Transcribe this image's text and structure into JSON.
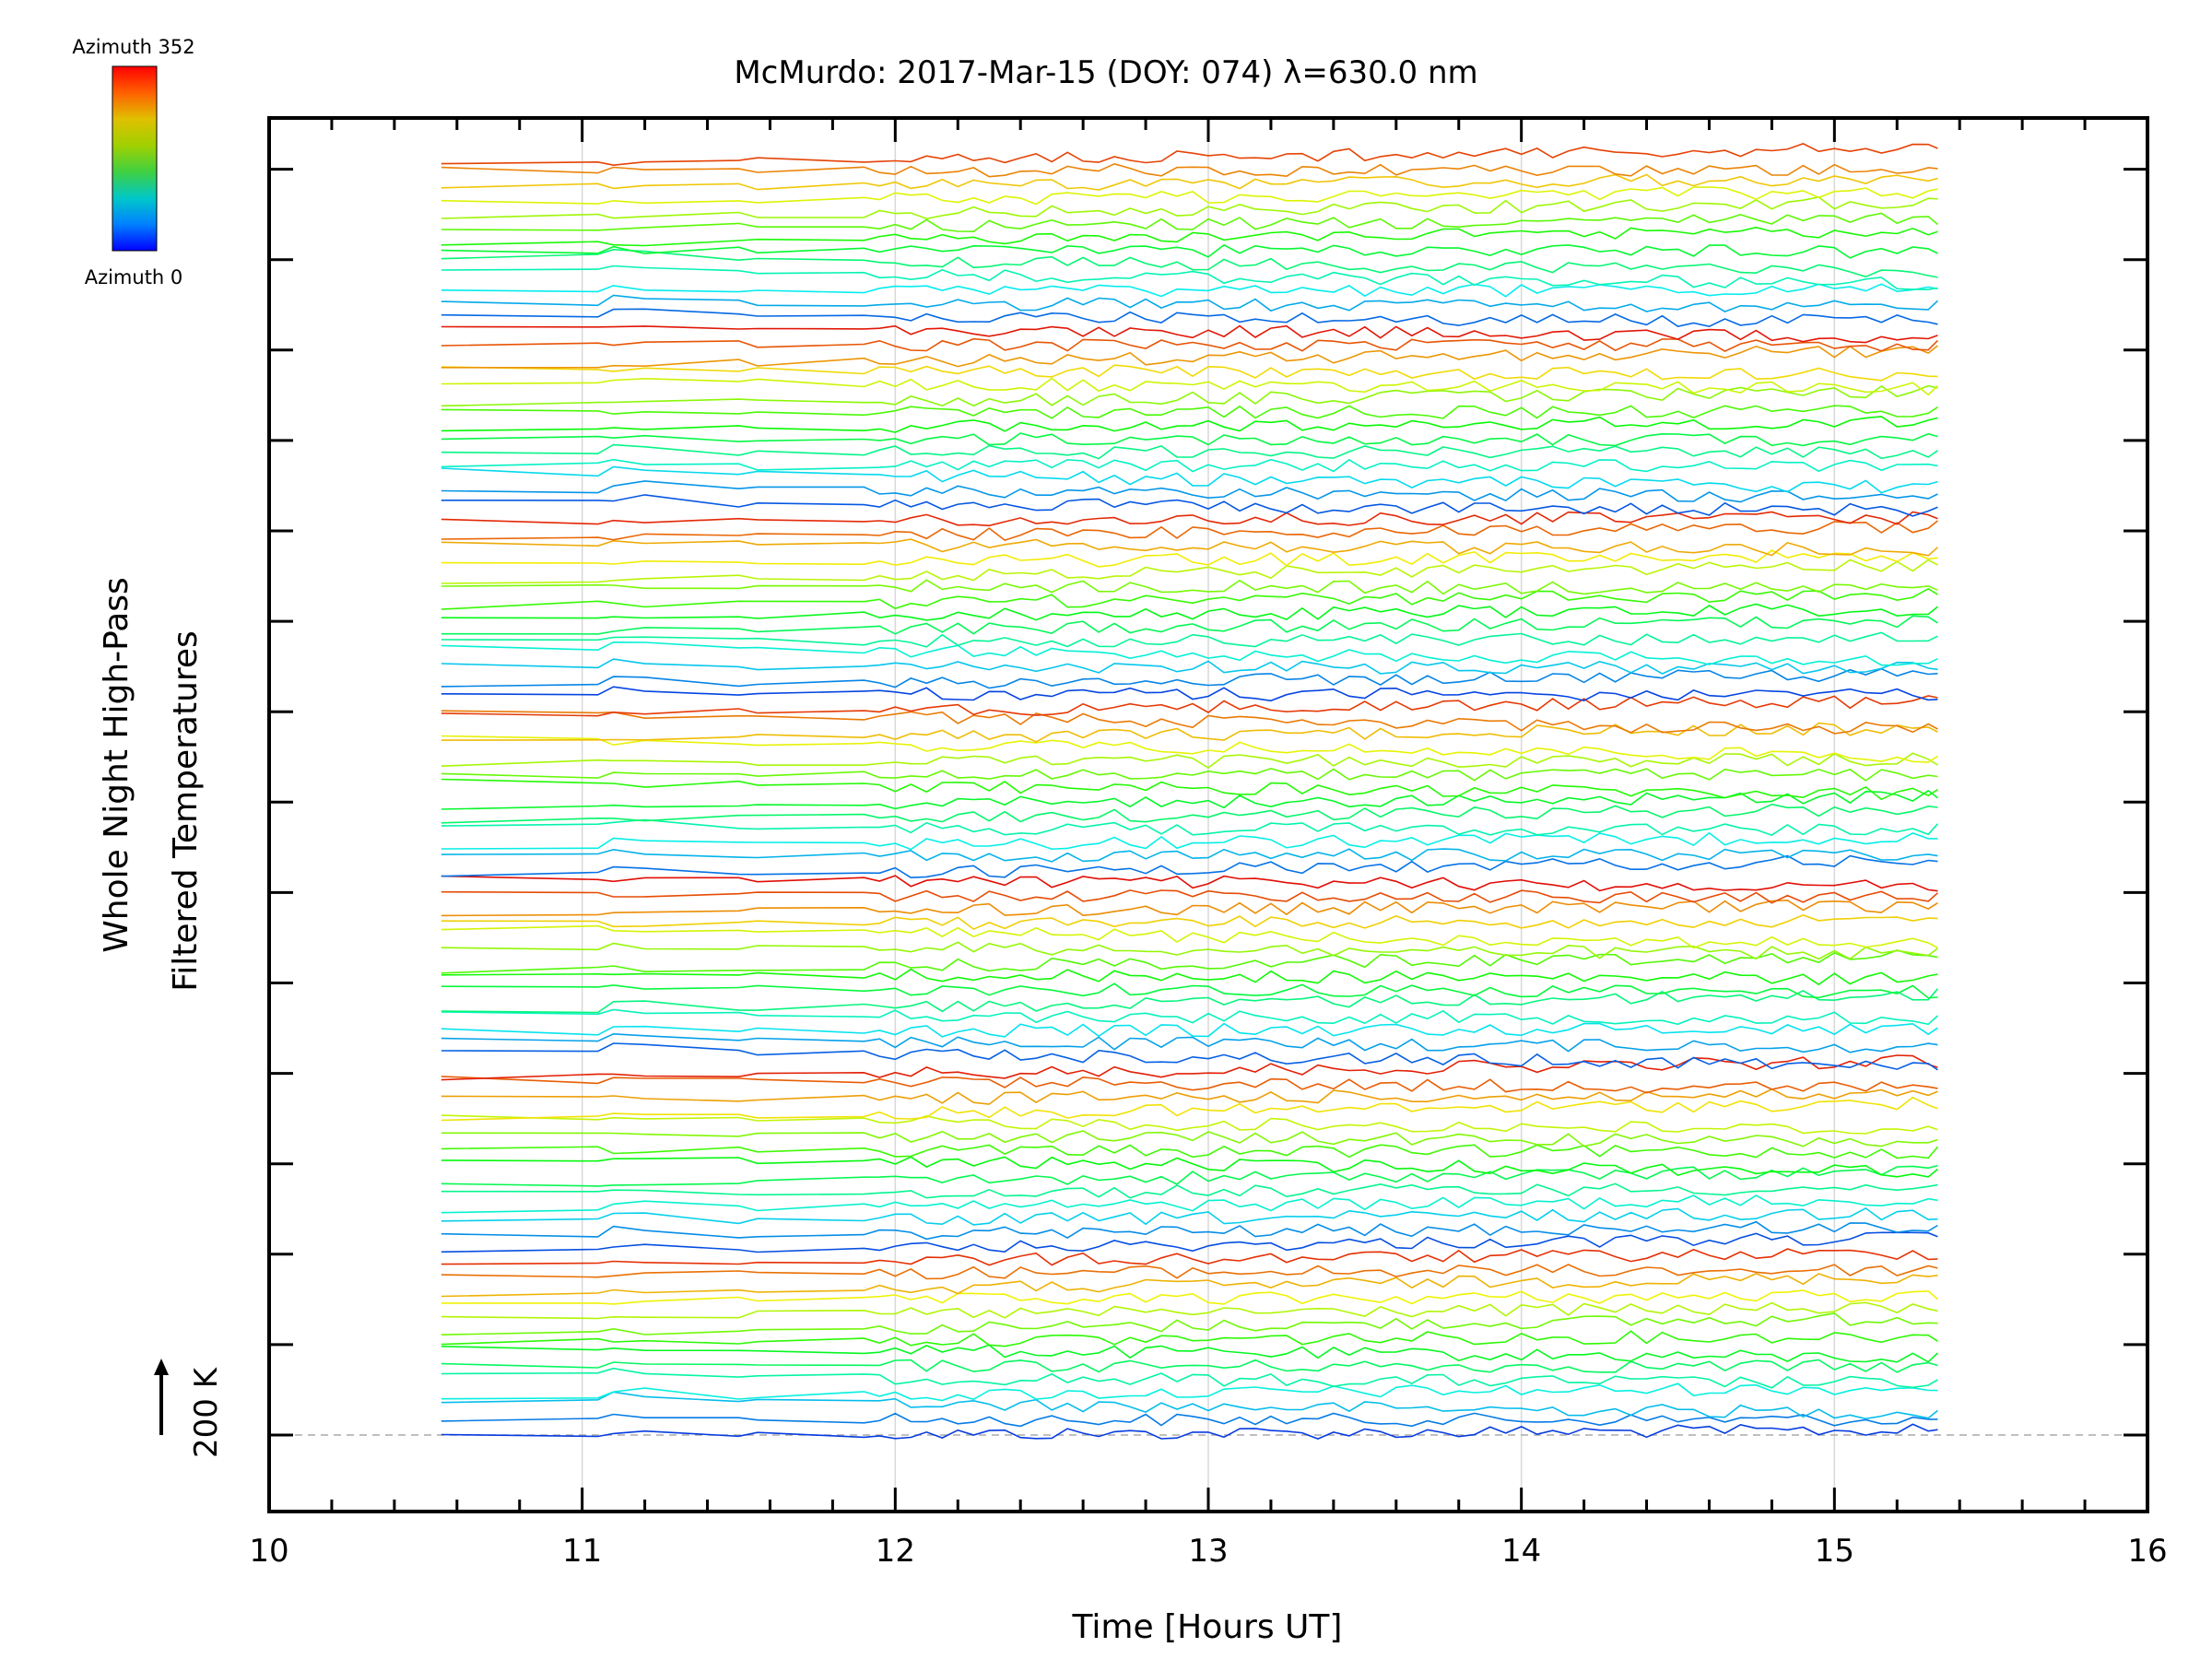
{
  "chart_data": {
    "type": "line",
    "title": "McMurdo: 2017-Mar-15 (DOY: 074) λ=630.0 nm",
    "xlabel": "Time [Hours UT]",
    "ylabel_line1": "Whole Night High-Pass",
    "ylabel_line2": "Filtered Temperatures",
    "xlim": [
      10,
      16
    ],
    "x_ticks": [
      "10",
      "11",
      "12",
      "13",
      "14",
      "15",
      "16"
    ],
    "x_range_data": [
      10.55,
      15.33
    ],
    "scale_bar_label": "200 K",
    "grid": "vertical",
    "series_count": 96,
    "azimuth_cycles": 7,
    "colorbar": {
      "top_label": "Azimuth 352",
      "bottom_label": "Azimuth 0",
      "colors": [
        "#0000ff",
        "#0080ff",
        "#00c8c8",
        "#40d040",
        "#a0d000",
        "#e0c000",
        "#ff6000",
        "#ff0000"
      ]
    }
  }
}
